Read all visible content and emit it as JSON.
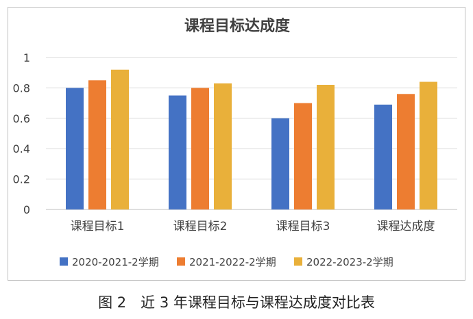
{
  "caption": "图 2　近 3 年课程目标与课程达成度对比表",
  "chart_data": {
    "type": "bar",
    "title": "课程目标达成度",
    "categories": [
      "课程目标1",
      "课程目标2",
      "课程目标3",
      "课程达成度"
    ],
    "series": [
      {
        "name": "2020-2021-2学期",
        "color": "#4472c4",
        "values": [
          0.8,
          0.75,
          0.6,
          0.69
        ]
      },
      {
        "name": "2021-2022-2学期",
        "color": "#ed7d31",
        "values": [
          0.85,
          0.8,
          0.7,
          0.76
        ]
      },
      {
        "name": "2022-2023-2学期",
        "color": "#e9b03a",
        "values": [
          0.92,
          0.83,
          0.82,
          0.84
        ]
      }
    ],
    "yticks": [
      "0",
      "0.2",
      "0.4",
      "0.6",
      "0.8",
      "1"
    ],
    "ylim": [
      0,
      1
    ],
    "grid": true,
    "legend_position": "bottom"
  }
}
